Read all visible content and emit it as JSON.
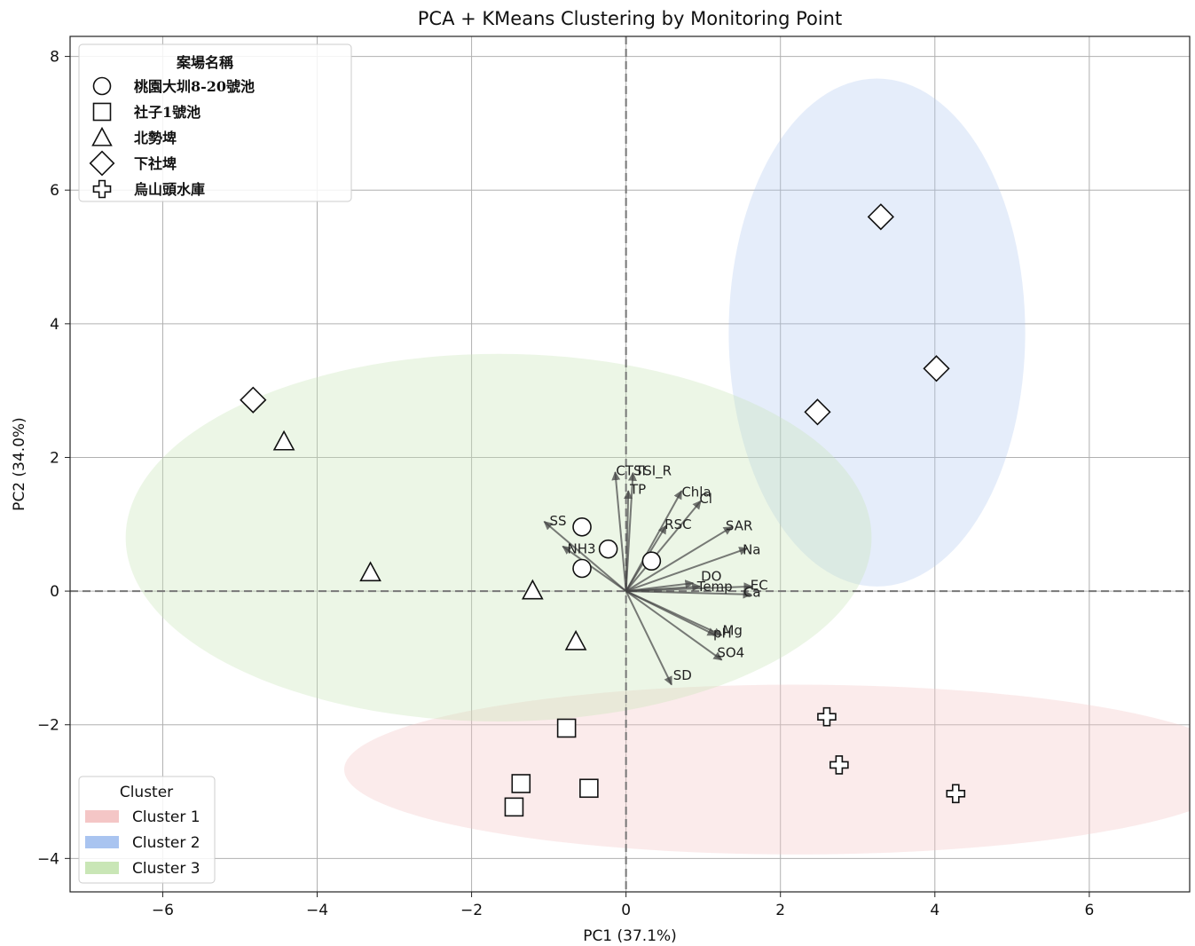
{
  "chart_data": {
    "type": "scatter",
    "title": "PCA + KMeans Clustering by Monitoring Point",
    "xlabel": "PC1 (37.1%)",
    "ylabel": "PC2 (34.0%)",
    "xlim": [
      -7.2,
      7.3
    ],
    "ylim": [
      -4.5,
      8.3
    ],
    "xticks": [
      -6,
      -4,
      -2,
      0,
      2,
      4,
      6
    ],
    "yticks": [
      -4,
      -2,
      0,
      2,
      4,
      6,
      8
    ],
    "xtick_labels": [
      "−6",
      "−4",
      "−2",
      "0",
      "2",
      "4",
      "6"
    ],
    "ytick_labels": [
      "−4",
      "−2",
      "0",
      "2",
      "4",
      "6",
      "8"
    ],
    "grid": true,
    "site_legend": {
      "title": "案場名稱",
      "placement": "top-left",
      "entries": [
        {
          "name": "桃園大圳8-20號池",
          "marker": "circle"
        },
        {
          "name": "社子1號池",
          "marker": "square"
        },
        {
          "name": "北勢埤",
          "marker": "triangle"
        },
        {
          "name": "下社埤",
          "marker": "diamond"
        },
        {
          "name": "烏山頭水庫",
          "marker": "plus"
        }
      ]
    },
    "cluster_legend": {
      "title": "Cluster",
      "placement": "bottom-left",
      "entries": [
        {
          "name": "Cluster 1",
          "color": "#f4c6c6"
        },
        {
          "name": "Cluster 2",
          "color": "#a9c4f0"
        },
        {
          "name": "Cluster 3",
          "color": "#c9e6b6"
        }
      ]
    },
    "cluster_ellipses": [
      {
        "cluster": "Cluster 1",
        "color": "#f4c6c6",
        "opacity": 0.35,
        "center": [
          2.2,
          -2.67
        ],
        "rx": 5.85,
        "ry": 1.27
      },
      {
        "cluster": "Cluster 2",
        "color": "#a9c4f0",
        "opacity": 0.3,
        "center": [
          3.25,
          3.87
        ],
        "rx": 1.92,
        "ry": 3.8
      },
      {
        "cluster": "Cluster 3",
        "color": "#c9e6b6",
        "opacity": 0.35,
        "center": [
          -1.65,
          0.8
        ],
        "rx": 4.83,
        "ry": 2.75
      }
    ],
    "points": [
      {
        "site": "桃園大圳8-20號池",
        "marker": "circle",
        "x": -0.57,
        "y": 0.96
      },
      {
        "site": "桃園大圳8-20號池",
        "marker": "circle",
        "x": -0.23,
        "y": 0.63
      },
      {
        "site": "桃園大圳8-20號池",
        "marker": "circle",
        "x": -0.57,
        "y": 0.34
      },
      {
        "site": "桃園大圳8-20號池",
        "marker": "circle",
        "x": 0.33,
        "y": 0.45
      },
      {
        "site": "社子1號池",
        "marker": "square",
        "x": -0.77,
        "y": -2.05
      },
      {
        "site": "社子1號池",
        "marker": "square",
        "x": -1.36,
        "y": -2.88
      },
      {
        "site": "社子1號池",
        "marker": "square",
        "x": -1.45,
        "y": -3.23
      },
      {
        "site": "社子1號池",
        "marker": "square",
        "x": -0.48,
        "y": -2.95
      },
      {
        "site": "北勢埤",
        "marker": "triangle",
        "x": -4.43,
        "y": 2.24
      },
      {
        "site": "北勢埤",
        "marker": "triangle",
        "x": -3.31,
        "y": 0.28
      },
      {
        "site": "北勢埤",
        "marker": "triangle",
        "x": -1.21,
        "y": 0.01
      },
      {
        "site": "北勢埤",
        "marker": "triangle",
        "x": -0.65,
        "y": -0.75
      },
      {
        "site": "下社埤",
        "marker": "diamond",
        "x": -4.83,
        "y": 2.86
      },
      {
        "site": "下社埤",
        "marker": "diamond",
        "x": 3.3,
        "y": 5.6
      },
      {
        "site": "下社埤",
        "marker": "diamond",
        "x": 4.02,
        "y": 3.33
      },
      {
        "site": "下社埤",
        "marker": "diamond",
        "x": 2.48,
        "y": 2.68
      },
      {
        "site": "烏山頭水庫",
        "marker": "plus",
        "x": 2.6,
        "y": -1.88
      },
      {
        "site": "烏山頭水庫",
        "marker": "plus",
        "x": 2.76,
        "y": -2.6
      },
      {
        "site": "烏山頭水庫",
        "marker": "plus",
        "x": 4.27,
        "y": -3.03
      }
    ],
    "loadings": [
      {
        "name": "CTSI",
        "x": -0.14,
        "y": 1.78,
        "lx": -0.13,
        "ly": 1.8
      },
      {
        "name": "TSI_R",
        "x": 0.09,
        "y": 1.77,
        "lx": 0.12,
        "ly": 1.8
      },
      {
        "name": "TP",
        "x": 0.03,
        "y": 1.5,
        "lx": 0.05,
        "ly": 1.52
      },
      {
        "name": "Chla",
        "x": 0.72,
        "y": 1.5,
        "lx": 0.72,
        "ly": 1.48
      },
      {
        "name": "Cl",
        "x": 0.97,
        "y": 1.35,
        "lx": 0.95,
        "ly": 1.38
      },
      {
        "name": "RSC",
        "x": 0.52,
        "y": 0.98,
        "lx": 0.5,
        "ly": 1.0
      },
      {
        "name": "SAR",
        "x": 1.37,
        "y": 0.96,
        "lx": 1.29,
        "ly": 0.98
      },
      {
        "name": "Na",
        "x": 1.57,
        "y": 0.64,
        "lx": 1.51,
        "ly": 0.62
      },
      {
        "name": "SS",
        "x": -1.06,
        "y": 1.04,
        "lx": -0.99,
        "ly": 1.05
      },
      {
        "name": "NH3",
        "x": -0.82,
        "y": 0.67,
        "lx": -0.76,
        "ly": 0.63
      },
      {
        "name": "DO",
        "x": 0.87,
        "y": 0.12,
        "lx": 0.97,
        "ly": 0.22
      },
      {
        "name": "Temp",
        "x": 0.96,
        "y": 0.07,
        "lx": 0.92,
        "ly": 0.07
      },
      {
        "name": "EC",
        "x": 1.63,
        "y": 0.07,
        "lx": 1.61,
        "ly": 0.09
      },
      {
        "name": "Ca",
        "x": 1.62,
        "y": -0.05,
        "lx": 1.52,
        "ly": -0.02
      },
      {
        "name": "Mg",
        "x": 1.24,
        "y": -0.66,
        "lx": 1.25,
        "ly": -0.59
      },
      {
        "name": "pH",
        "x": 1.16,
        "y": -0.66,
        "lx": 1.13,
        "ly": -0.63
      },
      {
        "name": "SO4",
        "x": 1.24,
        "y": -1.03,
        "lx": 1.18,
        "ly": -0.92
      },
      {
        "name": "SD",
        "x": 0.59,
        "y": -1.4,
        "lx": 0.61,
        "ly": -1.26
      }
    ]
  }
}
